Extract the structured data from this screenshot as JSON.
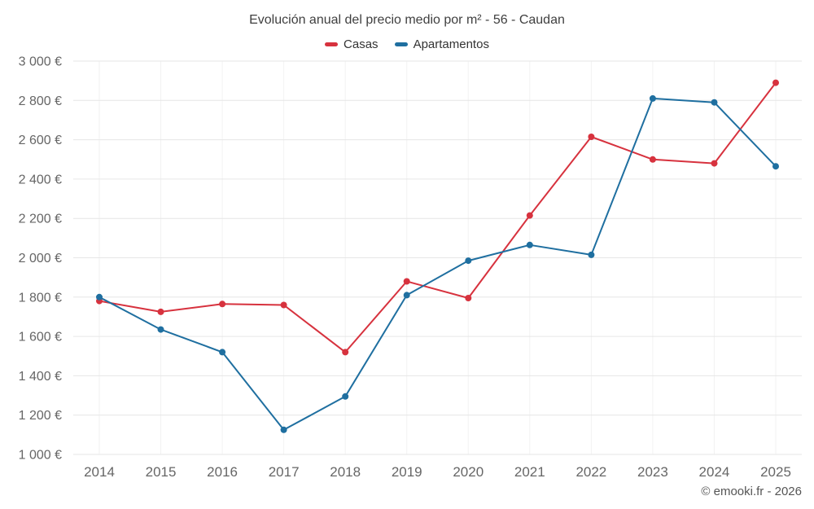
{
  "page": {
    "footer": "© emooki.fr - 2026"
  },
  "chart_data": {
    "type": "line",
    "title": "Evolución anual del precio medio por m² - 56 - Caudan",
    "x": [
      2014,
      2015,
      2016,
      2017,
      2018,
      2019,
      2020,
      2021,
      2022,
      2023,
      2024,
      2025
    ],
    "series": [
      {
        "name": "Casas",
        "color": "#d7323e",
        "values": [
          1780,
          1725,
          1765,
          1760,
          1520,
          1880,
          1795,
          2215,
          2615,
          2500,
          2480,
          2890
        ]
      },
      {
        "name": "Apartamentos",
        "color": "#1f6fa0",
        "values": [
          1800,
          1635,
          1520,
          1125,
          1295,
          1810,
          1985,
          2065,
          2015,
          2810,
          2790,
          2465
        ]
      }
    ],
    "ylim": [
      1000,
      3000
    ],
    "ytick_step": 200,
    "y_suffix": " €",
    "grid": true,
    "legend_position": "top",
    "colors": {
      "h_gridline": "#e6e6e6",
      "v_gridline": "#f2f2f2",
      "tick_label": "#666666"
    }
  }
}
